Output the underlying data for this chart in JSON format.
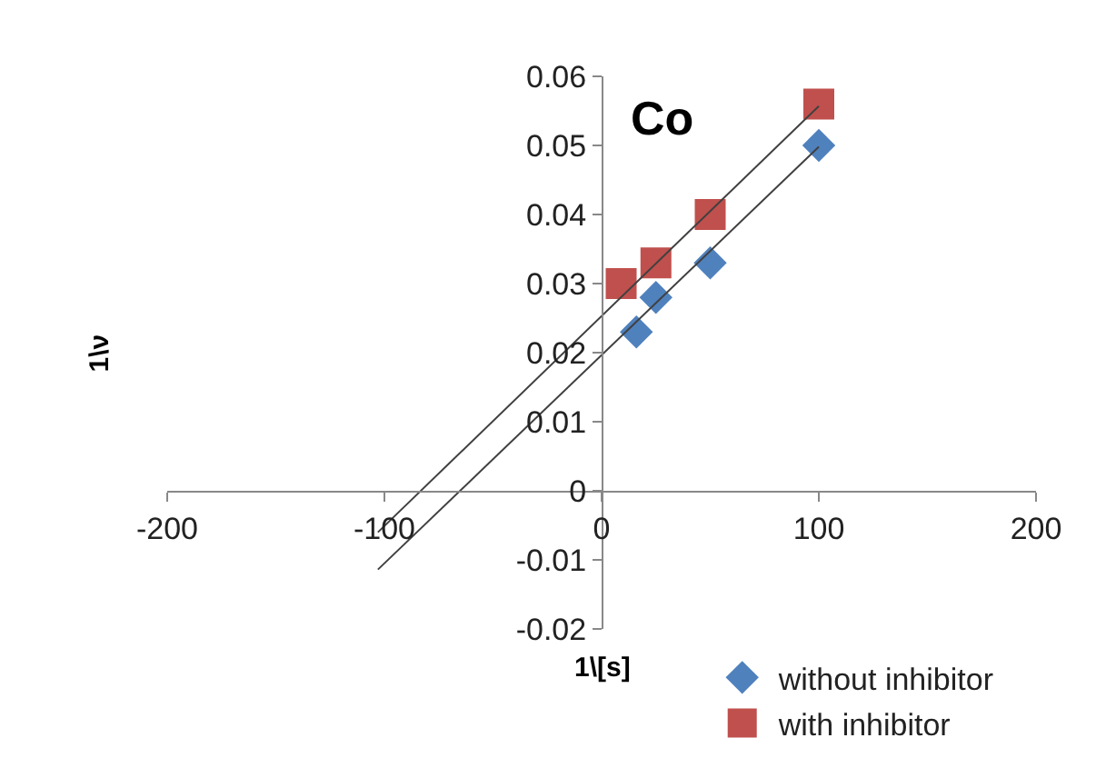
{
  "chart_data": {
    "type": "scatter",
    "title": "Co",
    "xlabel": "1\\[s]",
    "ylabel": "1\\ν",
    "xlim": [
      -200,
      200
    ],
    "xticks": [
      -200,
      -100,
      0,
      100,
      200
    ],
    "ylim": [
      -0.02,
      0.06
    ],
    "yticks": [
      -0.02,
      -0.01,
      0,
      0.01,
      0.02,
      0.03,
      0.04,
      0.05,
      0.06
    ],
    "grid": false,
    "legend": "bottom right",
    "series": [
      {
        "name": "without inhibitor",
        "color": "#4f81bd",
        "marker": "diamond",
        "x": [
          16,
          25,
          50,
          100
        ],
        "values": [
          0.023,
          0.028,
          0.033,
          0.05
        ]
      },
      {
        "name": "with inhibitor",
        "color": "#c0504d",
        "marker": "square",
        "x": [
          9,
          25,
          50,
          100
        ],
        "values": [
          0.03,
          0.033,
          0.04,
          0.056
        ]
      },
      {
        "type": "line",
        "color": "#404040",
        "marker": "none",
        "x": [
          -103,
          100
        ],
        "values": [
          -0.0114,
          0.0498
        ]
      },
      {
        "type": "line",
        "color": "#404040",
        "marker": "none",
        "x": [
          -103,
          100
        ],
        "values": [
          -0.006,
          0.0557
        ]
      }
    ]
  }
}
